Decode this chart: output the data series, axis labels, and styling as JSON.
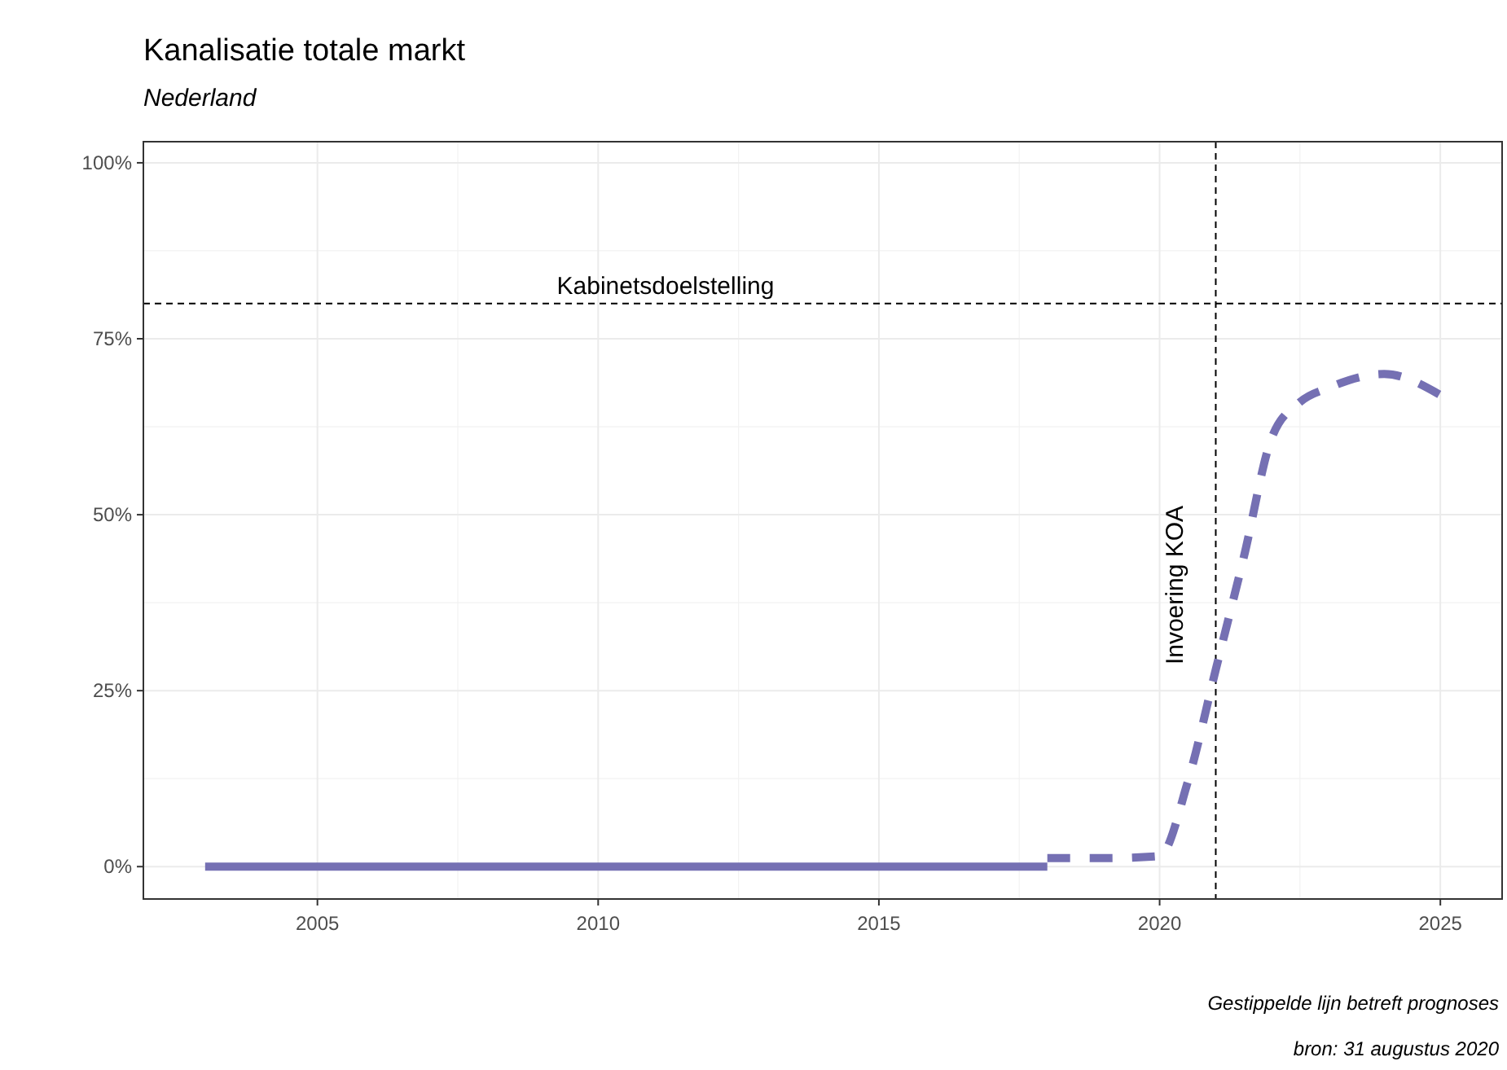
{
  "chart_data": {
    "type": "line",
    "title": "Kanalisatie totale markt",
    "subtitle": "Nederland",
    "series": [
      {
        "color": "#7570b3",
        "line_style": "solid",
        "x": [
          2003,
          2005,
          2010,
          2015,
          2018
        ],
        "values": [
          0,
          0,
          0,
          0,
          0
        ]
      },
      {
        "color": "#7570b3",
        "line_style": "dashed",
        "x": [
          2018,
          2019,
          2020,
          2020.5,
          2021,
          2021.5,
          2022,
          2022.5,
          2023,
          2024,
          2025
        ],
        "values": [
          1.2,
          1.2,
          1.5,
          12,
          28,
          44,
          61,
          66,
          68,
          70,
          67
        ]
      }
    ],
    "xlim": [
      2001.9,
      2026.1
    ],
    "xticks": [
      2005,
      2010,
      2015,
      2020,
      2025
    ],
    "ylim": [
      -4.6,
      103
    ],
    "yticks": [
      {
        "value": 0,
        "label": "0%"
      },
      {
        "value": 25,
        "label": "25%"
      },
      {
        "value": 50,
        "label": "50%"
      },
      {
        "value": 75,
        "label": "75%"
      },
      {
        "value": 100,
        "label": "100%"
      }
    ],
    "grid": true,
    "ref_lines": [
      {
        "axis": "y",
        "value": 80,
        "label": "Kabinetsdoelstelling",
        "line_style": "dashed",
        "color": "#000000"
      },
      {
        "axis": "x",
        "value": 2021,
        "label": "Invoering KOA",
        "line_style": "dashed",
        "color": "#000000"
      }
    ],
    "annotations": [
      "Gestippelde lijn betreft prognoses",
      "bron: 31 augustus 2020"
    ]
  }
}
